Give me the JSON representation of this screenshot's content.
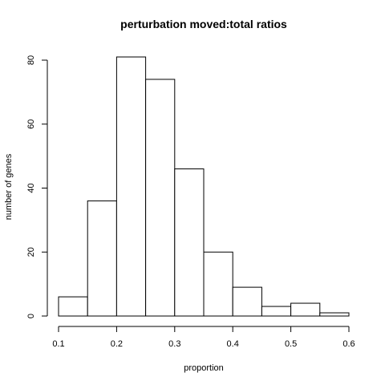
{
  "chart_data": {
    "type": "bar",
    "title": "perturbation moved:total ratios",
    "xlabel": "proportion",
    "ylabel": "number of genes",
    "bins": [
      {
        "x0": 0.1,
        "x1": 0.15,
        "count": 6
      },
      {
        "x0": 0.15,
        "x1": 0.2,
        "count": 36
      },
      {
        "x0": 0.2,
        "x1": 0.25,
        "count": 81
      },
      {
        "x0": 0.25,
        "x1": 0.3,
        "count": 74
      },
      {
        "x0": 0.3,
        "x1": 0.35,
        "count": 46
      },
      {
        "x0": 0.35,
        "x1": 0.4,
        "count": 20
      },
      {
        "x0": 0.4,
        "x1": 0.45,
        "count": 9
      },
      {
        "x0": 0.45,
        "x1": 0.5,
        "count": 3
      },
      {
        "x0": 0.5,
        "x1": 0.55,
        "count": 4
      },
      {
        "x0": 0.55,
        "x1": 0.6,
        "count": 1
      }
    ],
    "xlim": [
      0.1,
      0.6
    ],
    "ylim": [
      0,
      80
    ],
    "xticks": [
      "0.1",
      "0.2",
      "0.3",
      "0.4",
      "0.5",
      "0.6"
    ],
    "yticks": [
      "0",
      "20",
      "40",
      "60",
      "80"
    ],
    "grid": false,
    "bar_fill": "#ffffff",
    "bar_stroke": "#000000"
  }
}
